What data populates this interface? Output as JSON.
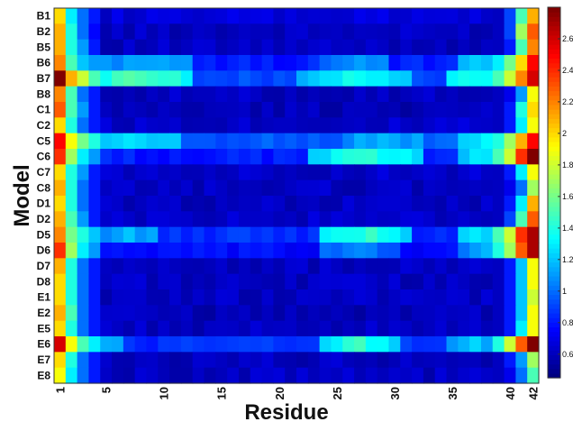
{
  "chart_data": {
    "type": "heatmap",
    "title": "",
    "xlabel": "Residue",
    "ylabel": "Model",
    "x_tick_labels": [
      "1",
      "5",
      "10",
      "15",
      "20",
      "25",
      "30",
      "35",
      "40",
      "42"
    ],
    "x_tick_values": [
      1,
      5,
      10,
      15,
      20,
      25,
      30,
      35,
      40,
      42
    ],
    "x_range": [
      1,
      42
    ],
    "rows": [
      "B1",
      "B2",
      "B5",
      "B6",
      "B7",
      "B8",
      "C1",
      "C2",
      "C5",
      "C6",
      "C7",
      "C8",
      "D1",
      "D2",
      "D5",
      "D6",
      "D7",
      "D8",
      "E1",
      "E2",
      "E5",
      "E6",
      "E7",
      "E8"
    ],
    "colorbar": {
      "range": [
        0.45,
        2.8
      ],
      "ticks": [
        "0.6",
        "0.8",
        "1",
        "1.2",
        "1.4",
        "1.6",
        "1.8",
        "2",
        "2.2",
        "2.4",
        "2.6"
      ],
      "colormap": "jet"
    },
    "row_profiles": {
      "B1": {
        "start": [
          2.0,
          1.3,
          1.0,
          0.8
        ],
        "mid": 0.65,
        "bumps": [],
        "end": [
          0.6,
          0.9,
          1.5,
          2.1
        ]
      },
      "B2": {
        "start": [
          2.1,
          1.4,
          1.0,
          0.75
        ],
        "mid": 0.6,
        "bumps": [],
        "end": [
          0.6,
          0.9,
          1.7,
          2.3
        ]
      },
      "B5": {
        "start": [
          2.1,
          1.4,
          1.1,
          0.8
        ],
        "mid": 0.6,
        "bumps": [],
        "end": [
          0.6,
          0.8,
          1.5,
          2.2
        ]
      },
      "B6": {
        "start": [
          2.2,
          1.5,
          1.2,
          1.1
        ],
        "mid": 0.8,
        "bumps": [
          [
            4,
            12,
            1.15
          ],
          [
            24,
            29,
            1.1
          ],
          [
            36,
            39,
            1.2
          ]
        ],
        "end": [
          1.3,
          1.6,
          2.0,
          2.5
        ]
      },
      "B7": {
        "start": [
          2.8,
          2.1,
          1.8,
          1.5
        ],
        "mid": 0.9,
        "bumps": [
          [
            4,
            12,
            1.55
          ],
          [
            22,
            31,
            1.35
          ],
          [
            35,
            39,
            1.4
          ]
        ],
        "end": [
          1.5,
          1.8,
          2.2,
          2.6
        ]
      },
      "B8": {
        "start": [
          2.2,
          1.5,
          1.0,
          0.8
        ],
        "mid": 0.6,
        "bumps": [],
        "end": [
          0.6,
          0.7,
          1.1,
          1.9
        ]
      },
      "C1": {
        "start": [
          2.3,
          1.5,
          1.1,
          0.8
        ],
        "mid": 0.58,
        "bumps": [],
        "end": [
          0.6,
          0.8,
          1.4,
          2.0
        ]
      },
      "C2": {
        "start": [
          2.0,
          1.4,
          1.0,
          0.8
        ],
        "mid": 0.62,
        "bumps": [],
        "end": [
          0.6,
          0.8,
          1.3,
          1.9
        ]
      },
      "C5": {
        "start": [
          2.5,
          1.9,
          1.6,
          1.4
        ],
        "mid": 0.95,
        "bumps": [
          [
            4,
            11,
            1.25
          ],
          [
            26,
            32,
            1.15
          ],
          [
            36,
            39,
            1.3
          ]
        ],
        "end": [
          1.4,
          1.7,
          2.1,
          2.5
        ]
      },
      "C6": {
        "start": [
          2.4,
          1.7,
          1.3,
          1.1
        ],
        "mid": 0.8,
        "bumps": [
          [
            23,
            32,
            1.45
          ],
          [
            36,
            39,
            1.35
          ]
        ],
        "end": [
          1.5,
          1.8,
          2.4,
          2.8
        ]
      },
      "C7": {
        "start": [
          2.0,
          1.4,
          1.1,
          0.8
        ],
        "mid": 0.62,
        "bumps": [],
        "end": [
          0.6,
          0.8,
          1.3,
          1.9
        ]
      },
      "C8": {
        "start": [
          2.1,
          1.4,
          1.0,
          0.8
        ],
        "mid": 0.6,
        "bumps": [],
        "end": [
          0.6,
          0.7,
          1.0,
          1.7
        ]
      },
      "D1": {
        "start": [
          2.0,
          1.4,
          1.0,
          0.8
        ],
        "mid": 0.6,
        "bumps": [],
        "end": [
          0.6,
          0.8,
          1.3,
          2.1
        ]
      },
      "D2": {
        "start": [
          2.1,
          1.5,
          1.1,
          0.8
        ],
        "mid": 0.62,
        "bumps": [],
        "end": [
          0.6,
          0.9,
          1.5,
          2.3
        ]
      },
      "D5": {
        "start": [
          2.2,
          1.6,
          1.4,
          1.2
        ],
        "mid": 0.85,
        "bumps": [
          [
            5,
            9,
            1.15
          ],
          [
            24,
            31,
            1.45
          ],
          [
            36,
            39,
            1.3
          ]
        ],
        "end": [
          1.5,
          1.8,
          2.4,
          2.7
        ]
      },
      "D6": {
        "start": [
          2.4,
          1.7,
          1.3,
          1.1
        ],
        "mid": 0.75,
        "bumps": [
          [
            24,
            30,
            1.05
          ],
          [
            36,
            39,
            1.15
          ]
        ],
        "end": [
          1.4,
          1.7,
          2.3,
          2.7
        ]
      },
      "D7": {
        "start": [
          2.1,
          1.4,
          1.0,
          0.8
        ],
        "mid": 0.6,
        "bumps": [],
        "end": [
          0.6,
          0.8,
          1.2,
          1.9
        ]
      },
      "D8": {
        "start": [
          2.0,
          1.4,
          1.0,
          0.8
        ],
        "mid": 0.6,
        "bumps": [],
        "end": [
          0.6,
          0.8,
          1.2,
          1.9
        ]
      },
      "E1": {
        "start": [
          2.0,
          1.4,
          1.0,
          0.8
        ],
        "mid": 0.6,
        "bumps": [],
        "end": [
          0.6,
          0.8,
          1.2,
          1.8
        ]
      },
      "E2": {
        "start": [
          2.1,
          1.5,
          1.0,
          0.8
        ],
        "mid": 0.58,
        "bumps": [],
        "end": [
          0.6,
          0.8,
          1.2,
          1.9
        ]
      },
      "E5": {
        "start": [
          2.0,
          1.4,
          1.0,
          0.8
        ],
        "mid": 0.6,
        "bumps": [],
        "end": [
          0.6,
          0.8,
          1.3,
          1.9
        ]
      },
      "E6": {
        "start": [
          2.6,
          1.9,
          1.5,
          1.3
        ],
        "mid": 0.85,
        "bumps": [
          [
            3,
            6,
            1.15
          ],
          [
            24,
            30,
            1.45
          ],
          [
            35,
            39,
            1.2
          ]
        ],
        "end": [
          1.4,
          1.8,
          2.3,
          2.8
        ]
      },
      "E7": {
        "start": [
          2.0,
          1.4,
          1.0,
          0.8
        ],
        "mid": 0.6,
        "bumps": [],
        "end": [
          0.6,
          0.8,
          1.1,
          1.7
        ]
      },
      "E8": {
        "start": [
          1.9,
          1.3,
          1.0,
          0.8
        ],
        "mid": 0.6,
        "bumps": [],
        "end": [
          0.6,
          0.7,
          1.0,
          1.5
        ]
      }
    }
  }
}
